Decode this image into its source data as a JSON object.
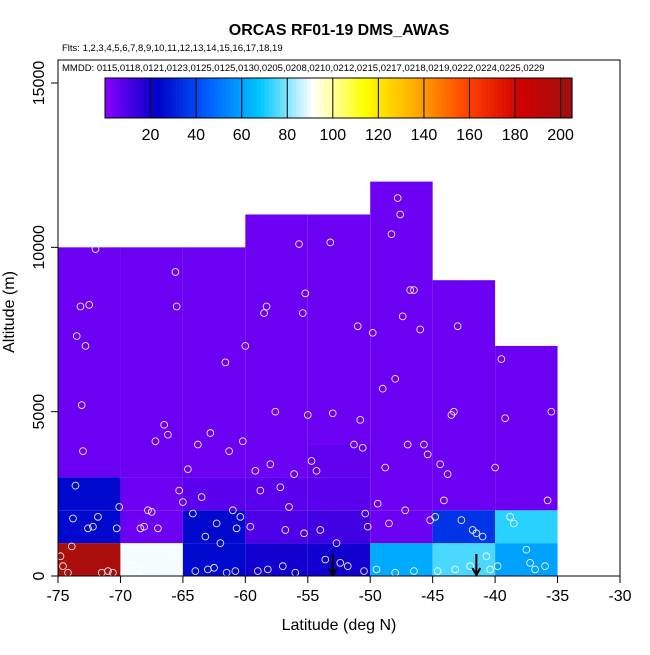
{
  "chart_data": {
    "type": "heatmap",
    "title": "ORCAS RF01-19 DMS_AWAS",
    "subtitle_flights": "Flts: 1,2,3,4,5,6,7,8,9,10,11,12,13,14,15,16,17,18,19",
    "subtitle_dates": "MMDD: 0115,0118,0121,0123,0125,0125,0130,0205,0208,0210,0212,0215,0217,0218,0219,0222,0224,0225,0229",
    "xlabel": "Latitude (deg N)",
    "ylabel": "Altitude (m)",
    "xlim": [
      -75,
      -30
    ],
    "ylim": [
      0,
      15700
    ],
    "x_ticks": [
      "-75",
      "-70",
      "-65",
      "-60",
      "-55",
      "-50",
      "-45",
      "-40",
      "-35",
      "-30"
    ],
    "x_tick_values": [
      -75,
      -70,
      -65,
      -60,
      -55,
      -50,
      -45,
      -40,
      -35,
      -30
    ],
    "y_ticks": [
      "0",
      "5000",
      "10000",
      "15000"
    ],
    "y_tick_values": [
      0,
      5000,
      10000,
      15000
    ],
    "colorbar": {
      "ticks": [
        "20",
        "40",
        "60",
        "80",
        "100",
        "120",
        "140",
        "160",
        "180",
        "200"
      ],
      "tick_values": [
        20,
        40,
        60,
        80,
        100,
        120,
        140,
        160,
        180,
        200
      ],
      "range": [
        0,
        205
      ],
      "colors": [
        "#8a00ff",
        "#0000c8",
        "#0060ff",
        "#00c8ff",
        "#ffffff",
        "#ffff00",
        "#ffaa00",
        "#ff4000",
        "#d00000",
        "#a01010"
      ]
    },
    "cells": [
      {
        "lat": [
          -75,
          -70
        ],
        "alt": [
          0,
          1000
        ],
        "value": 200
      },
      {
        "lat": [
          -75,
          -70
        ],
        "alt": [
          1000,
          2000
        ],
        "value": 25
      },
      {
        "lat": [
          -75,
          -70
        ],
        "alt": [
          2000,
          3000
        ],
        "value": 25
      },
      {
        "lat": [
          -75,
          -70
        ],
        "alt": [
          3000,
          10000
        ],
        "value": 5
      },
      {
        "lat": [
          -70,
          -65
        ],
        "alt": [
          0,
          1000
        ],
        "value": 90
      },
      {
        "lat": [
          -70,
          -65
        ],
        "alt": [
          1000,
          2000
        ],
        "value": 5
      },
      {
        "lat": [
          -70,
          -65
        ],
        "alt": [
          2000,
          3000
        ],
        "value": 5
      },
      {
        "lat": [
          -70,
          -65
        ],
        "alt": [
          3000,
          10000
        ],
        "value": 5
      },
      {
        "lat": [
          -65,
          -60
        ],
        "alt": [
          0,
          1000
        ],
        "value": 25
      },
      {
        "lat": [
          -65,
          -60
        ],
        "alt": [
          1000,
          2000
        ],
        "value": 25
      },
      {
        "lat": [
          -65,
          -60
        ],
        "alt": [
          2000,
          3000
        ],
        "value": 8
      },
      {
        "lat": [
          -65,
          -60
        ],
        "alt": [
          3000,
          10000
        ],
        "value": 5
      },
      {
        "lat": [
          -60,
          -55
        ],
        "alt": [
          0,
          1000
        ],
        "value": 20
      },
      {
        "lat": [
          -60,
          -55
        ],
        "alt": [
          1000,
          2000
        ],
        "value": 10
      },
      {
        "lat": [
          -60,
          -55
        ],
        "alt": [
          2000,
          3000
        ],
        "value": 8
      },
      {
        "lat": [
          -60,
          -55
        ],
        "alt": [
          3000,
          11000
        ],
        "value": 5
      },
      {
        "lat": [
          -55,
          -50
        ],
        "alt": [
          0,
          1000
        ],
        "value": 20
      },
      {
        "lat": [
          -55,
          -50
        ],
        "alt": [
          1000,
          2000
        ],
        "value": 12
      },
      {
        "lat": [
          -55,
          -50
        ],
        "alt": [
          2000,
          3000
        ],
        "value": 8
      },
      {
        "lat": [
          -55,
          -50
        ],
        "alt": [
          3000,
          4000
        ],
        "value": 7
      },
      {
        "lat": [
          -55,
          -50
        ],
        "alt": [
          4000,
          11000
        ],
        "value": 5
      },
      {
        "lat": [
          -50,
          -45
        ],
        "alt": [
          0,
          1000
        ],
        "value": 62
      },
      {
        "lat": [
          -50,
          -45
        ],
        "alt": [
          1000,
          2000
        ],
        "value": 5
      },
      {
        "lat": [
          -50,
          -45
        ],
        "alt": [
          2000,
          12000
        ],
        "value": 5
      },
      {
        "lat": [
          -45,
          -40
        ],
        "alt": [
          0,
          1000
        ],
        "value": 75
      },
      {
        "lat": [
          -45,
          -40
        ],
        "alt": [
          1000,
          2000
        ],
        "value": 35
      },
      {
        "lat": [
          -45,
          -40
        ],
        "alt": [
          2000,
          9000
        ],
        "value": 5
      },
      {
        "lat": [
          -40,
          -35
        ],
        "alt": [
          0,
          1000
        ],
        "value": 60
      },
      {
        "lat": [
          -40,
          -35
        ],
        "alt": [
          1000,
          2000
        ],
        "value": 72
      },
      {
        "lat": [
          -40,
          -35
        ],
        "alt": [
          2000,
          7000
        ],
        "value": 5
      }
    ],
    "arrows_lat": [
      -53,
      -41.5
    ],
    "samples": [
      [
        -74.8,
        600
      ],
      [
        -74.6,
        300
      ],
      [
        -74.2,
        100
      ],
      [
        -73.9,
        900
      ],
      [
        -73.6,
        2750
      ],
      [
        -73.8,
        1750
      ],
      [
        -73.5,
        7300
      ],
      [
        -73.2,
        8200
      ],
      [
        -72.8,
        7000
      ],
      [
        -72.5,
        8250
      ],
      [
        -72.0,
        9950
      ],
      [
        -73.1,
        5200
      ],
      [
        -73.0,
        3800
      ],
      [
        -72.6,
        1450
      ],
      [
        -72.2,
        1500
      ],
      [
        -71.8,
        1800
      ],
      [
        -71.5,
        100
      ],
      [
        -71.0,
        150
      ],
      [
        -70.6,
        100
      ],
      [
        -70.3,
        1450
      ],
      [
        -70.1,
        2100
      ],
      [
        -69.7,
        100
      ],
      [
        -69.4,
        300
      ],
      [
        -69.0,
        500
      ],
      [
        -68.7,
        200
      ],
      [
        -68.4,
        1450
      ],
      [
        -68.1,
        1500
      ],
      [
        -67.8,
        2000
      ],
      [
        -67.5,
        1950
      ],
      [
        -67.2,
        4100
      ],
      [
        -67.0,
        1450
      ],
      [
        -66.5,
        4600
      ],
      [
        -66.2,
        4300
      ],
      [
        -65.8,
        300
      ],
      [
        -65.6,
        9250
      ],
      [
        -65.5,
        8200
      ],
      [
        -65.3,
        2600
      ],
      [
        -65.0,
        2250
      ],
      [
        -66.8,
        300
      ],
      [
        -68.3,
        150
      ],
      [
        -69.2,
        150
      ],
      [
        -64.6,
        3250
      ],
      [
        -64.2,
        1900
      ],
      [
        -63.8,
        4000
      ],
      [
        -63.5,
        2400
      ],
      [
        -63.2,
        1200
      ],
      [
        -62.8,
        4350
      ],
      [
        -62.3,
        1600
      ],
      [
        -62.0,
        1000
      ],
      [
        -61.6,
        6500
      ],
      [
        -61.3,
        3800
      ],
      [
        -61.0,
        2000
      ],
      [
        -60.7,
        1450
      ],
      [
        -60.4,
        1800
      ],
      [
        -60.2,
        4100
      ],
      [
        -60.0,
        7000
      ],
      [
        -64.0,
        150
      ],
      [
        -63.0,
        200
      ],
      [
        -62.5,
        250
      ],
      [
        -61.5,
        100
      ],
      [
        -60.8,
        150
      ],
      [
        -59.6,
        1500
      ],
      [
        -59.2,
        3200
      ],
      [
        -58.8,
        2600
      ],
      [
        -58.5,
        8000
      ],
      [
        -58.3,
        8200
      ],
      [
        -58.0,
        3400
      ],
      [
        -57.6,
        5000
      ],
      [
        -57.2,
        2700
      ],
      [
        -56.8,
        1400
      ],
      [
        -56.5,
        2100
      ],
      [
        -56.1,
        3100
      ],
      [
        -55.7,
        10100
      ],
      [
        -55.4,
        8000
      ],
      [
        -55.2,
        8600
      ],
      [
        -55.0,
        4900
      ],
      [
        -54.7,
        3500
      ],
      [
        -54.3,
        3200
      ],
      [
        -59.0,
        150
      ],
      [
        -58.2,
        200
      ],
      [
        -57.0,
        300
      ],
      [
        -56.0,
        100
      ],
      [
        -55.3,
        1300
      ],
      [
        -54.0,
        1400
      ],
      [
        -53.6,
        500
      ],
      [
        -53.2,
        10150
      ],
      [
        -53.0,
        4950
      ],
      [
        -52.7,
        1000
      ],
      [
        -52.4,
        400
      ],
      [
        -51.8,
        300
      ],
      [
        -51.3,
        4000
      ],
      [
        -51.0,
        7600
      ],
      [
        -50.8,
        4750
      ],
      [
        -50.6,
        3900
      ],
      [
        -50.4,
        1900
      ],
      [
        -50.2,
        1500
      ],
      [
        -49.8,
        7400
      ],
      [
        -49.4,
        2200
      ],
      [
        -49.0,
        5700
      ],
      [
        -48.8,
        3300
      ],
      [
        -48.5,
        1600
      ],
      [
        -48.3,
        10400
      ],
      [
        -48.0,
        6000
      ],
      [
        -47.8,
        11500
      ],
      [
        -47.6,
        11000
      ],
      [
        -47.4,
        7900
      ],
      [
        -47.2,
        2000
      ],
      [
        -47.0,
        4000
      ],
      [
        -46.8,
        8700
      ],
      [
        -46.5,
        8700
      ],
      [
        -46.0,
        7500
      ],
      [
        -45.7,
        4000
      ],
      [
        -45.4,
        3700
      ],
      [
        -45.2,
        1700
      ],
      [
        -50.5,
        150
      ],
      [
        -49.5,
        200
      ],
      [
        -48.0,
        100
      ],
      [
        -46.5,
        150
      ],
      [
        -44.8,
        1800
      ],
      [
        -44.4,
        3400
      ],
      [
        -44.1,
        2300
      ],
      [
        -43.8,
        3100
      ],
      [
        -43.5,
        4900
      ],
      [
        -43.3,
        5000
      ],
      [
        -43.0,
        7600
      ],
      [
        -42.7,
        1700
      ],
      [
        -41.8,
        1400
      ],
      [
        -41.5,
        1300
      ],
      [
        -41.0,
        1200
      ],
      [
        -40.7,
        600
      ],
      [
        -40.4,
        200
      ],
      [
        -40.0,
        3300
      ],
      [
        -39.5,
        6600
      ],
      [
        -39.2,
        4800
      ],
      [
        -38.8,
        1800
      ],
      [
        -38.5,
        1600
      ],
      [
        -37.5,
        800
      ],
      [
        -37.2,
        400
      ],
      [
        -36.8,
        200
      ],
      [
        -36.0,
        300
      ],
      [
        -35.8,
        2300
      ],
      [
        -35.5,
        5000
      ],
      [
        -44.6,
        150
      ],
      [
        -43.2,
        200
      ],
      [
        -42.0,
        300
      ],
      [
        -39.8,
        300
      ]
    ]
  }
}
